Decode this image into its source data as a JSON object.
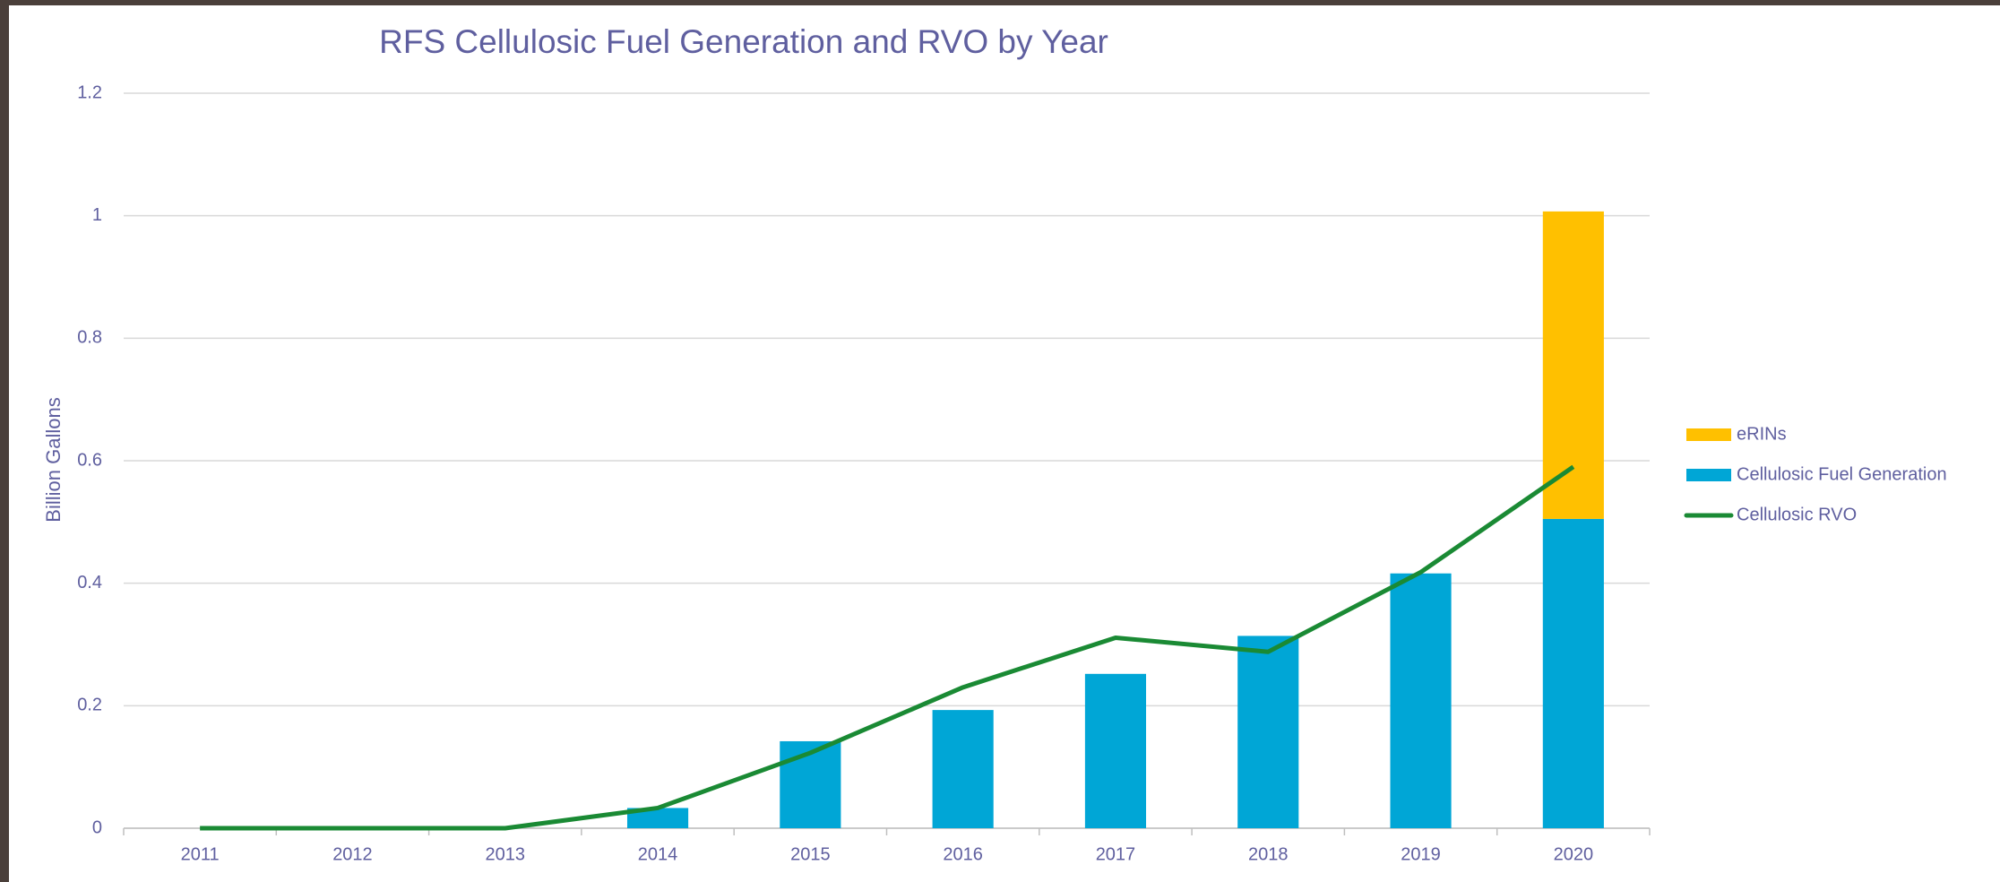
{
  "chart_data": {
    "type": "bar",
    "title": "RFS Cellulosic Fuel Generation and RVO by Year",
    "ylabel": "Billion Gallons",
    "categories": [
      "2011",
      "2012",
      "2013",
      "2014",
      "2015",
      "2016",
      "2017",
      "2018",
      "2019",
      "2020"
    ],
    "series": [
      {
        "name": "Cellulosic Fuel Generation",
        "type": "bar",
        "color": "#00a6d6",
        "values": [
          0,
          0,
          0,
          0.033,
          0.142,
          0.193,
          0.252,
          0.314,
          0.416,
          0.505
        ]
      },
      {
        "name": "eRINs",
        "type": "bar",
        "color": "#ffc000",
        "values": [
          null,
          null,
          null,
          null,
          null,
          null,
          null,
          null,
          null,
          0.502
        ]
      },
      {
        "name": "Cellulosic RVO",
        "type": "line",
        "color": "#1a8a34",
        "values": [
          0,
          0,
          0,
          0.033,
          0.123,
          0.23,
          0.311,
          0.288,
          0.418,
          0.59
        ]
      }
    ],
    "stacked": true,
    "ylim": [
      0,
      1.2
    ],
    "yticks": [
      0,
      0.2,
      0.4,
      0.6,
      0.8,
      1,
      1.2
    ],
    "grid": true,
    "legend": "right"
  }
}
